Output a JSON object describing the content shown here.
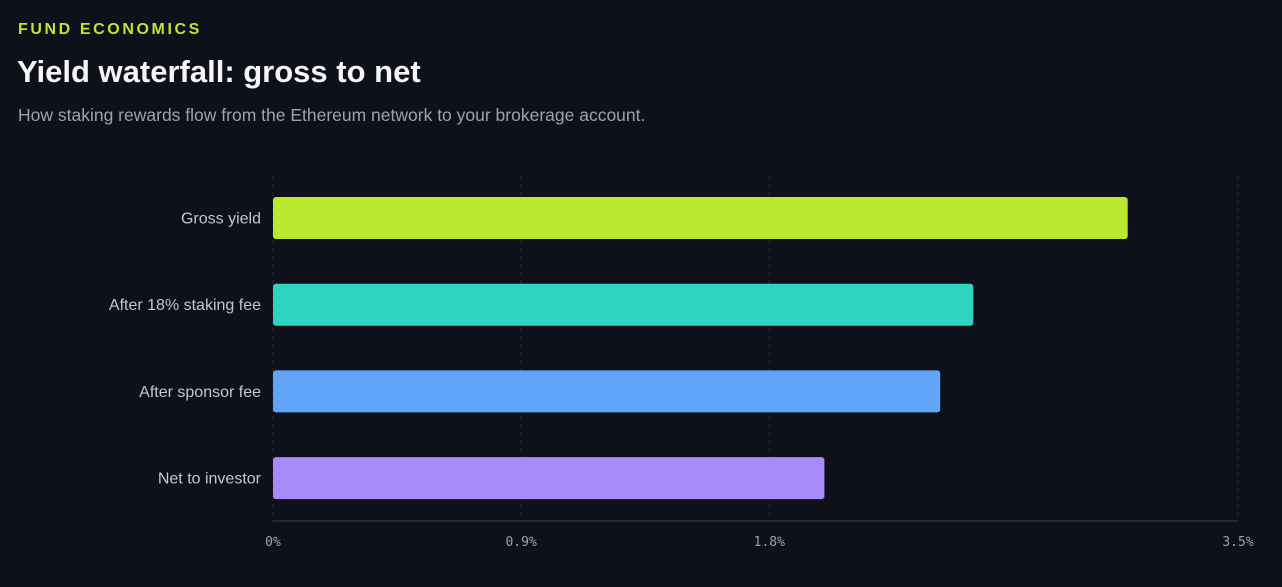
{
  "header": {
    "eyebrow": "FUND ECONOMICS",
    "title": "Yield waterfall: gross to net",
    "subtitle": "How staking rewards flow from the Ethereum network to your brokerage account."
  },
  "chart_data": {
    "type": "bar",
    "orientation": "horizontal",
    "categories": [
      "Gross yield",
      "After 18% staking fee",
      "After sponsor fee",
      "Net to investor"
    ],
    "values": [
      3.1,
      2.54,
      2.42,
      2.0
    ],
    "unit": "%",
    "colors": [
      "#b9e82e",
      "#2fd4c0",
      "#60a5fa",
      "#a78bfa"
    ],
    "xlim": [
      0,
      3.5
    ],
    "ticks": [
      {
        "value": 0,
        "label": "0%"
      },
      {
        "value": 0.9,
        "label": "0.9%"
      },
      {
        "value": 1.8,
        "label": "1.8%"
      },
      {
        "value": 3.5,
        "label": "3.5%"
      }
    ],
    "grid": true,
    "grid_style": "dashed-vertical",
    "legend": "none"
  },
  "colors": {
    "background": "#0e1119",
    "accent": "#bfe633",
    "grid": "#252a36",
    "axis": "#2b303c"
  }
}
